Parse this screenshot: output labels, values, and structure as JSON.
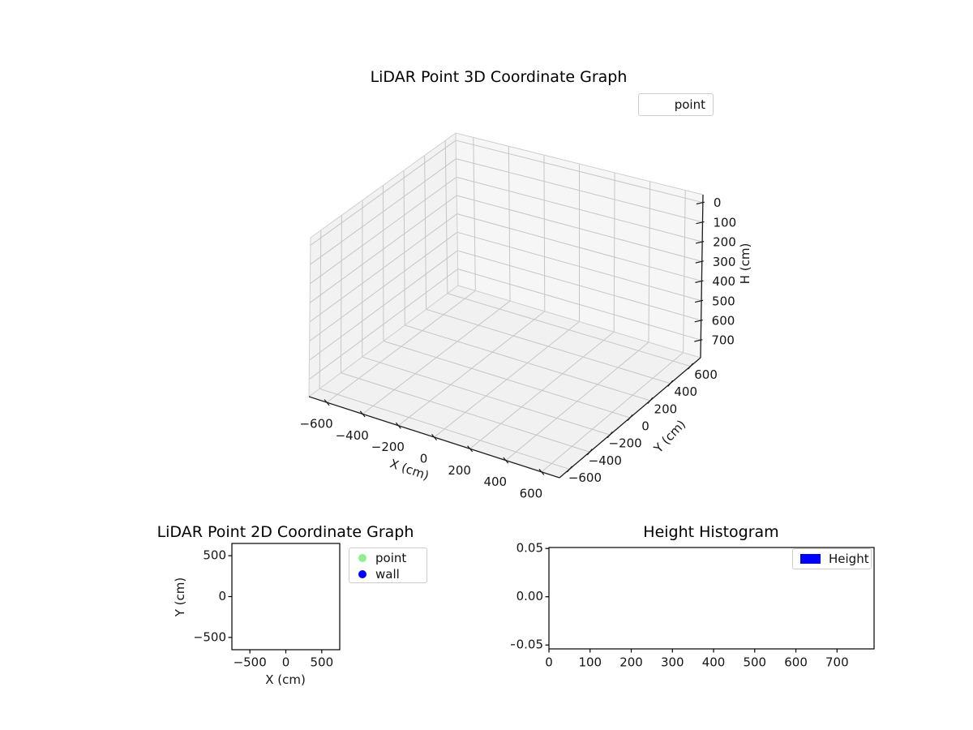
{
  "figure": {
    "background": "#ffffff"
  },
  "chart_data": [
    {
      "id": "plot3d",
      "type": "scatter3d",
      "title": "LiDAR Point 3D Coordinate Graph",
      "xlabel": "X (cm)",
      "ylabel": "Y (cm)",
      "zlabel": "H (cm)",
      "xlim": [
        -700,
        700
      ],
      "ylim": [
        -700,
        700
      ],
      "zlim": [
        -40,
        790
      ],
      "zaxis_inverted": true,
      "grid": true,
      "xticks": [
        -600,
        -400,
        -200,
        0,
        200,
        400,
        600
      ],
      "xticklabels": [
        "−600",
        "−400",
        "−200",
        "0",
        "200",
        "400",
        "600"
      ],
      "yticks": [
        -600,
        -400,
        -200,
        0,
        200,
        400,
        600
      ],
      "yticklabels": [
        "−600",
        "−400",
        "−200",
        "0",
        "200",
        "400",
        "600"
      ],
      "zticks": [
        0,
        100,
        200,
        300,
        400,
        500,
        600,
        700
      ],
      "zticklabels": [
        "0",
        "100",
        "200",
        "300",
        "400",
        "500",
        "600",
        "700"
      ],
      "legend": [
        {
          "label": "point",
          "marker": "none",
          "color": null
        }
      ],
      "legend_position": "upper right, outside axes",
      "series": [
        {
          "name": "point",
          "points": []
        }
      ]
    },
    {
      "id": "plot2d",
      "type": "scatter",
      "title": "LiDAR Point 2D Coordinate Graph",
      "xlabel": "X (cm)",
      "ylabel": "Y (cm)",
      "xlim": [
        -750,
        750
      ],
      "ylim": [
        -650,
        650
      ],
      "grid": false,
      "xticks": [
        -500,
        0,
        500
      ],
      "xticklabels": [
        "−500",
        "0",
        "500"
      ],
      "yticks": [
        500,
        0,
        -500
      ],
      "yticklabels": [
        "500",
        "0",
        "−500"
      ],
      "legend": [
        {
          "label": "point",
          "marker": "circle",
          "color": "#90ee90"
        },
        {
          "label": "wall",
          "marker": "circle",
          "color": "#0000ff"
        }
      ],
      "legend_position": "outside right of axes",
      "series": [
        {
          "name": "point",
          "points": []
        },
        {
          "name": "wall",
          "points": []
        }
      ]
    },
    {
      "id": "hist",
      "type": "bar",
      "title": "Height Histogram",
      "xlabel": "",
      "ylabel": "",
      "xlim": [
        0,
        790
      ],
      "ylim": [
        -0.054,
        0.051
      ],
      "grid": false,
      "xticks": [
        0,
        100,
        200,
        300,
        400,
        500,
        600,
        700
      ],
      "xticklabels": [
        "0",
        "100",
        "200",
        "300",
        "400",
        "500",
        "600",
        "700"
      ],
      "yticks": [
        0.05,
        0.0,
        -0.05
      ],
      "yticklabels": [
        "0.05",
        "0.00",
        "−0.05"
      ],
      "legend": [
        {
          "label": "Height",
          "marker": "rect",
          "color": "#0000ff"
        }
      ],
      "legend_position": "upper right, inside axes",
      "values": []
    }
  ]
}
